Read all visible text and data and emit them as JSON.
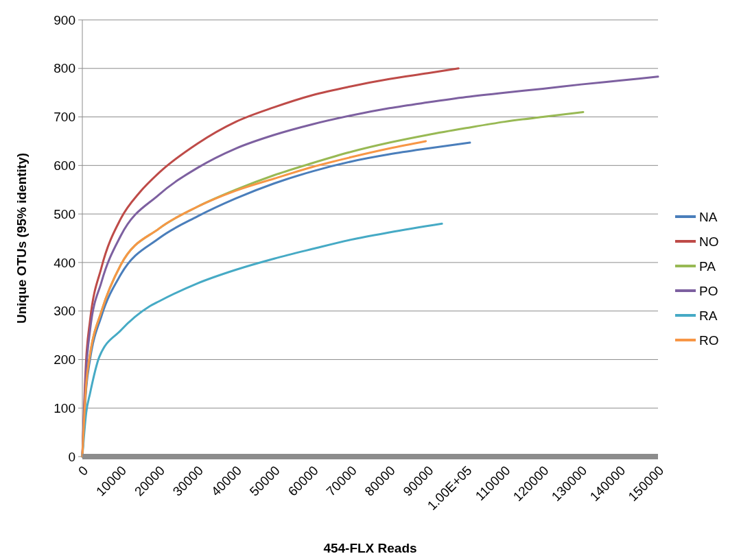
{
  "chart_data": {
    "type": "line",
    "xlabel": "454-FLX Reads",
    "ylabel": "Unique OTUs (95% identity)",
    "xlim": [
      0,
      150000
    ],
    "ylim": [
      0,
      900
    ],
    "xticks": [
      0,
      10000,
      20000,
      30000,
      40000,
      50000,
      60000,
      70000,
      80000,
      90000,
      {
        "value": 100000,
        "label": "1.00E+05"
      },
      110000,
      120000,
      130000,
      140000,
      150000
    ],
    "yticks": [
      0,
      100,
      200,
      300,
      400,
      500,
      600,
      700,
      800,
      900
    ],
    "grid": "y",
    "legend": "right",
    "marker": "none",
    "line_style": "solid",
    "series": [
      {
        "name": "NA",
        "color": "#4a7ebb",
        "x": [
          0,
          1000,
          2000,
          5000,
          10000,
          20000,
          30000,
          40000,
          50000,
          60000,
          70000,
          80000,
          90000,
          101000
        ],
        "values": [
          0,
          140,
          200,
          290,
          375,
          450,
          495,
          532,
          563,
          588,
          608,
          623,
          635,
          647
        ]
      },
      {
        "name": "NO",
        "color": "#be4b48",
        "x": [
          0,
          1000,
          2000,
          5000,
          10000,
          15000,
          20000,
          30000,
          40000,
          50000,
          60000,
          70000,
          80000,
          90000,
          98000
        ],
        "values": [
          0,
          200,
          280,
          390,
          490,
          545,
          585,
          645,
          690,
          720,
          745,
          763,
          778,
          790,
          800
        ]
      },
      {
        "name": "PA",
        "color": "#98b954",
        "x": [
          0,
          1000,
          2000,
          5000,
          10000,
          20000,
          30000,
          40000,
          50000,
          60000,
          70000,
          80000,
          90000,
          100000,
          110000,
          120000,
          130500
        ],
        "values": [
          0,
          150,
          210,
          300,
          395,
          470,
          515,
          550,
          580,
          605,
          628,
          647,
          663,
          677,
          690,
          700,
          710
        ]
      },
      {
        "name": "PO",
        "color": "#7d60a0",
        "x": [
          0,
          1000,
          2000,
          5000,
          10000,
          20000,
          30000,
          40000,
          50000,
          60000,
          70000,
          80000,
          90000,
          100000,
          110000,
          120000,
          130000,
          140000,
          150000
        ],
        "values": [
          0,
          180,
          260,
          360,
          455,
          540,
          595,
          635,
          663,
          685,
          703,
          718,
          730,
          741,
          750,
          758,
          767,
          775,
          783
        ]
      },
      {
        "name": "RA",
        "color": "#46aac5",
        "x": [
          0,
          1000,
          2000,
          4400,
          10000,
          17400,
          20000,
          30000,
          40000,
          50000,
          60000,
          70000,
          80000,
          93700
        ],
        "values": [
          0,
          90,
          130,
          205,
          260,
          309,
          320,
          357,
          385,
          408,
          428,
          447,
          462,
          480
        ]
      },
      {
        "name": "RO",
        "color": "#f79646",
        "x": [
          0,
          1000,
          2000,
          5000,
          10000,
          20000,
          30000,
          40000,
          50000,
          60000,
          70000,
          80000,
          89500
        ],
        "values": [
          0,
          150,
          210,
          300,
          395,
          470,
          515,
          548,
          573,
          597,
          617,
          635,
          650
        ]
      }
    ]
  }
}
